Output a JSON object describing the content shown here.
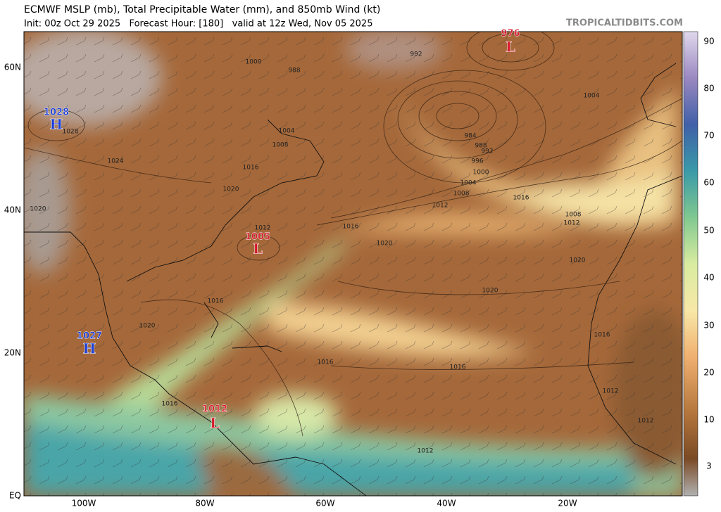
{
  "header": {
    "title": "ECMWF MSLP (mb), Total Precipitable Water (mm), and 850mb Wind (kt)",
    "subtitle": "Init: 00z Oct 29 2025   Forecast Hour: [180]   valid at 12z Wed, Nov 05 2025",
    "watermark": "TROPICALTIDBITS.COM"
  },
  "latitude_labels": [
    "60N",
    "40N",
    "20N",
    "EQ"
  ],
  "longitude_labels": [
    "100W",
    "80W",
    "60W",
    "40W",
    "20W"
  ],
  "colorbar_labels": [
    90,
    80,
    70,
    60,
    50,
    40,
    30,
    20,
    10,
    3
  ],
  "pressure_centers": [
    {
      "kind": "L",
      "value": 976
    },
    {
      "kind": "H",
      "value": 1028
    },
    {
      "kind": "L",
      "value": 1005
    },
    {
      "kind": "H",
      "value": 1027
    },
    {
      "kind": "L",
      "value": 1012
    }
  ],
  "isobar_labels": [
    992,
    1000,
    988,
    1028,
    1004,
    1008,
    1024,
    1016,
    1020,
    1020,
    984,
    988,
    992,
    996,
    1000,
    1004,
    1008,
    1012,
    1016,
    1004,
    1008,
    1012,
    1016,
    1020,
    1020,
    1020,
    1012,
    1016,
    1020,
    1016,
    1016,
    1016,
    1016,
    1012,
    1012,
    1012
  ]
}
